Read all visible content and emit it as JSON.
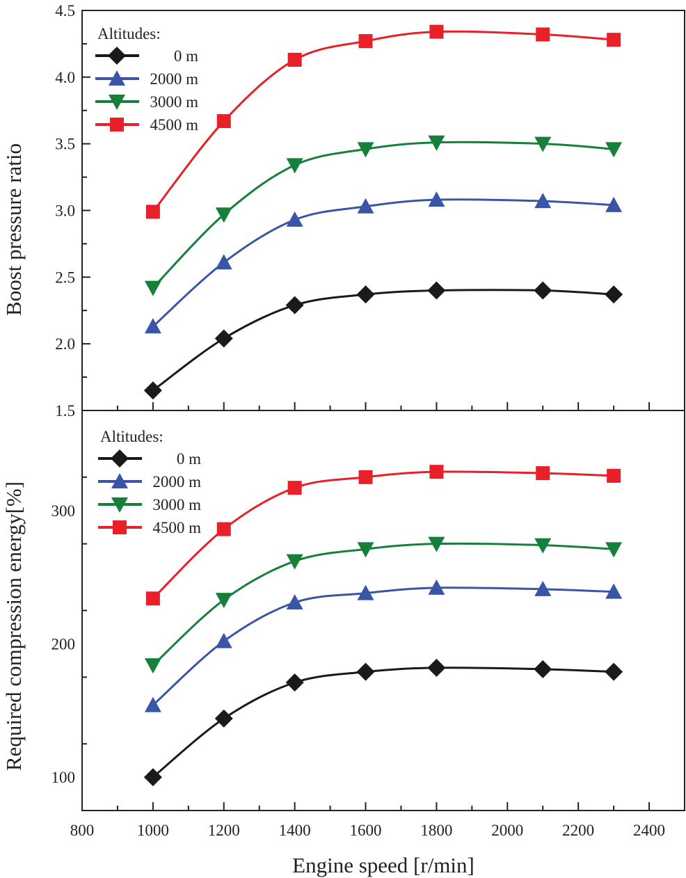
{
  "chart_data": [
    {
      "type": "line",
      "ylabel": "Boost pressure ratio",
      "xlabel": "",
      "xlim": [
        800,
        2500
      ],
      "ylim": [
        1.5,
        4.5
      ],
      "yticks": [
        "1.5",
        "2.0",
        "2.5",
        "3.0",
        "3.5",
        "4.0",
        "4.5"
      ],
      "grid": false,
      "legend": {
        "title": "Altitudes:",
        "placement": "top-left"
      },
      "x": [
        1000,
        1200,
        1400,
        1600,
        1800,
        2100,
        2300
      ],
      "series": [
        {
          "name": "0 m",
          "marker": "diamond",
          "color": "#1a1a1a",
          "values": [
            1.65,
            2.04,
            2.29,
            2.37,
            2.4,
            2.4,
            2.37
          ]
        },
        {
          "name": "2000 m",
          "marker": "triangle-up",
          "color": "#3a55a8",
          "values": [
            2.13,
            2.61,
            2.93,
            3.03,
            3.08,
            3.07,
            3.04
          ]
        },
        {
          "name": "3000 m",
          "marker": "triangle-down",
          "color": "#16803a",
          "values": [
            2.42,
            2.97,
            3.34,
            3.46,
            3.51,
            3.5,
            3.46
          ]
        },
        {
          "name": "4500 m",
          "marker": "square",
          "color": "#e8202a",
          "values": [
            2.99,
            3.67,
            4.13,
            4.27,
            4.34,
            4.32,
            4.28
          ]
        }
      ]
    },
    {
      "type": "line",
      "ylabel": "Required compression energy[%]",
      "xlabel": "Engine speed [r/min]",
      "xlim": [
        800,
        2500
      ],
      "ylim": [
        75,
        375
      ],
      "xticks": [
        "800",
        "1000",
        "1200",
        "1400",
        "1600",
        "1800",
        "2000",
        "2200",
        "2400"
      ],
      "yticks": [
        "100",
        "200",
        "300"
      ],
      "grid": false,
      "legend": {
        "title": "Altitudes:",
        "placement": "top-left"
      },
      "x": [
        1000,
        1200,
        1400,
        1600,
        1800,
        2100,
        2300
      ],
      "series": [
        {
          "name": "0 m",
          "marker": "diamond",
          "color": "#1a1a1a",
          "values": [
            100,
            144,
            171,
            179,
            182,
            181,
            179
          ]
        },
        {
          "name": "2000 m",
          "marker": "triangle-up",
          "color": "#3a55a8",
          "values": [
            154,
            202,
            231,
            238,
            242,
            241,
            239
          ]
        },
        {
          "name": "3000 m",
          "marker": "triangle-down",
          "color": "#16803a",
          "values": [
            184,
            233,
            262,
            271,
            275,
            274,
            271
          ]
        },
        {
          "name": "4500 m",
          "marker": "square",
          "color": "#e8202a",
          "values": [
            234,
            286,
            317,
            325,
            329,
            328,
            326
          ]
        }
      ]
    }
  ]
}
